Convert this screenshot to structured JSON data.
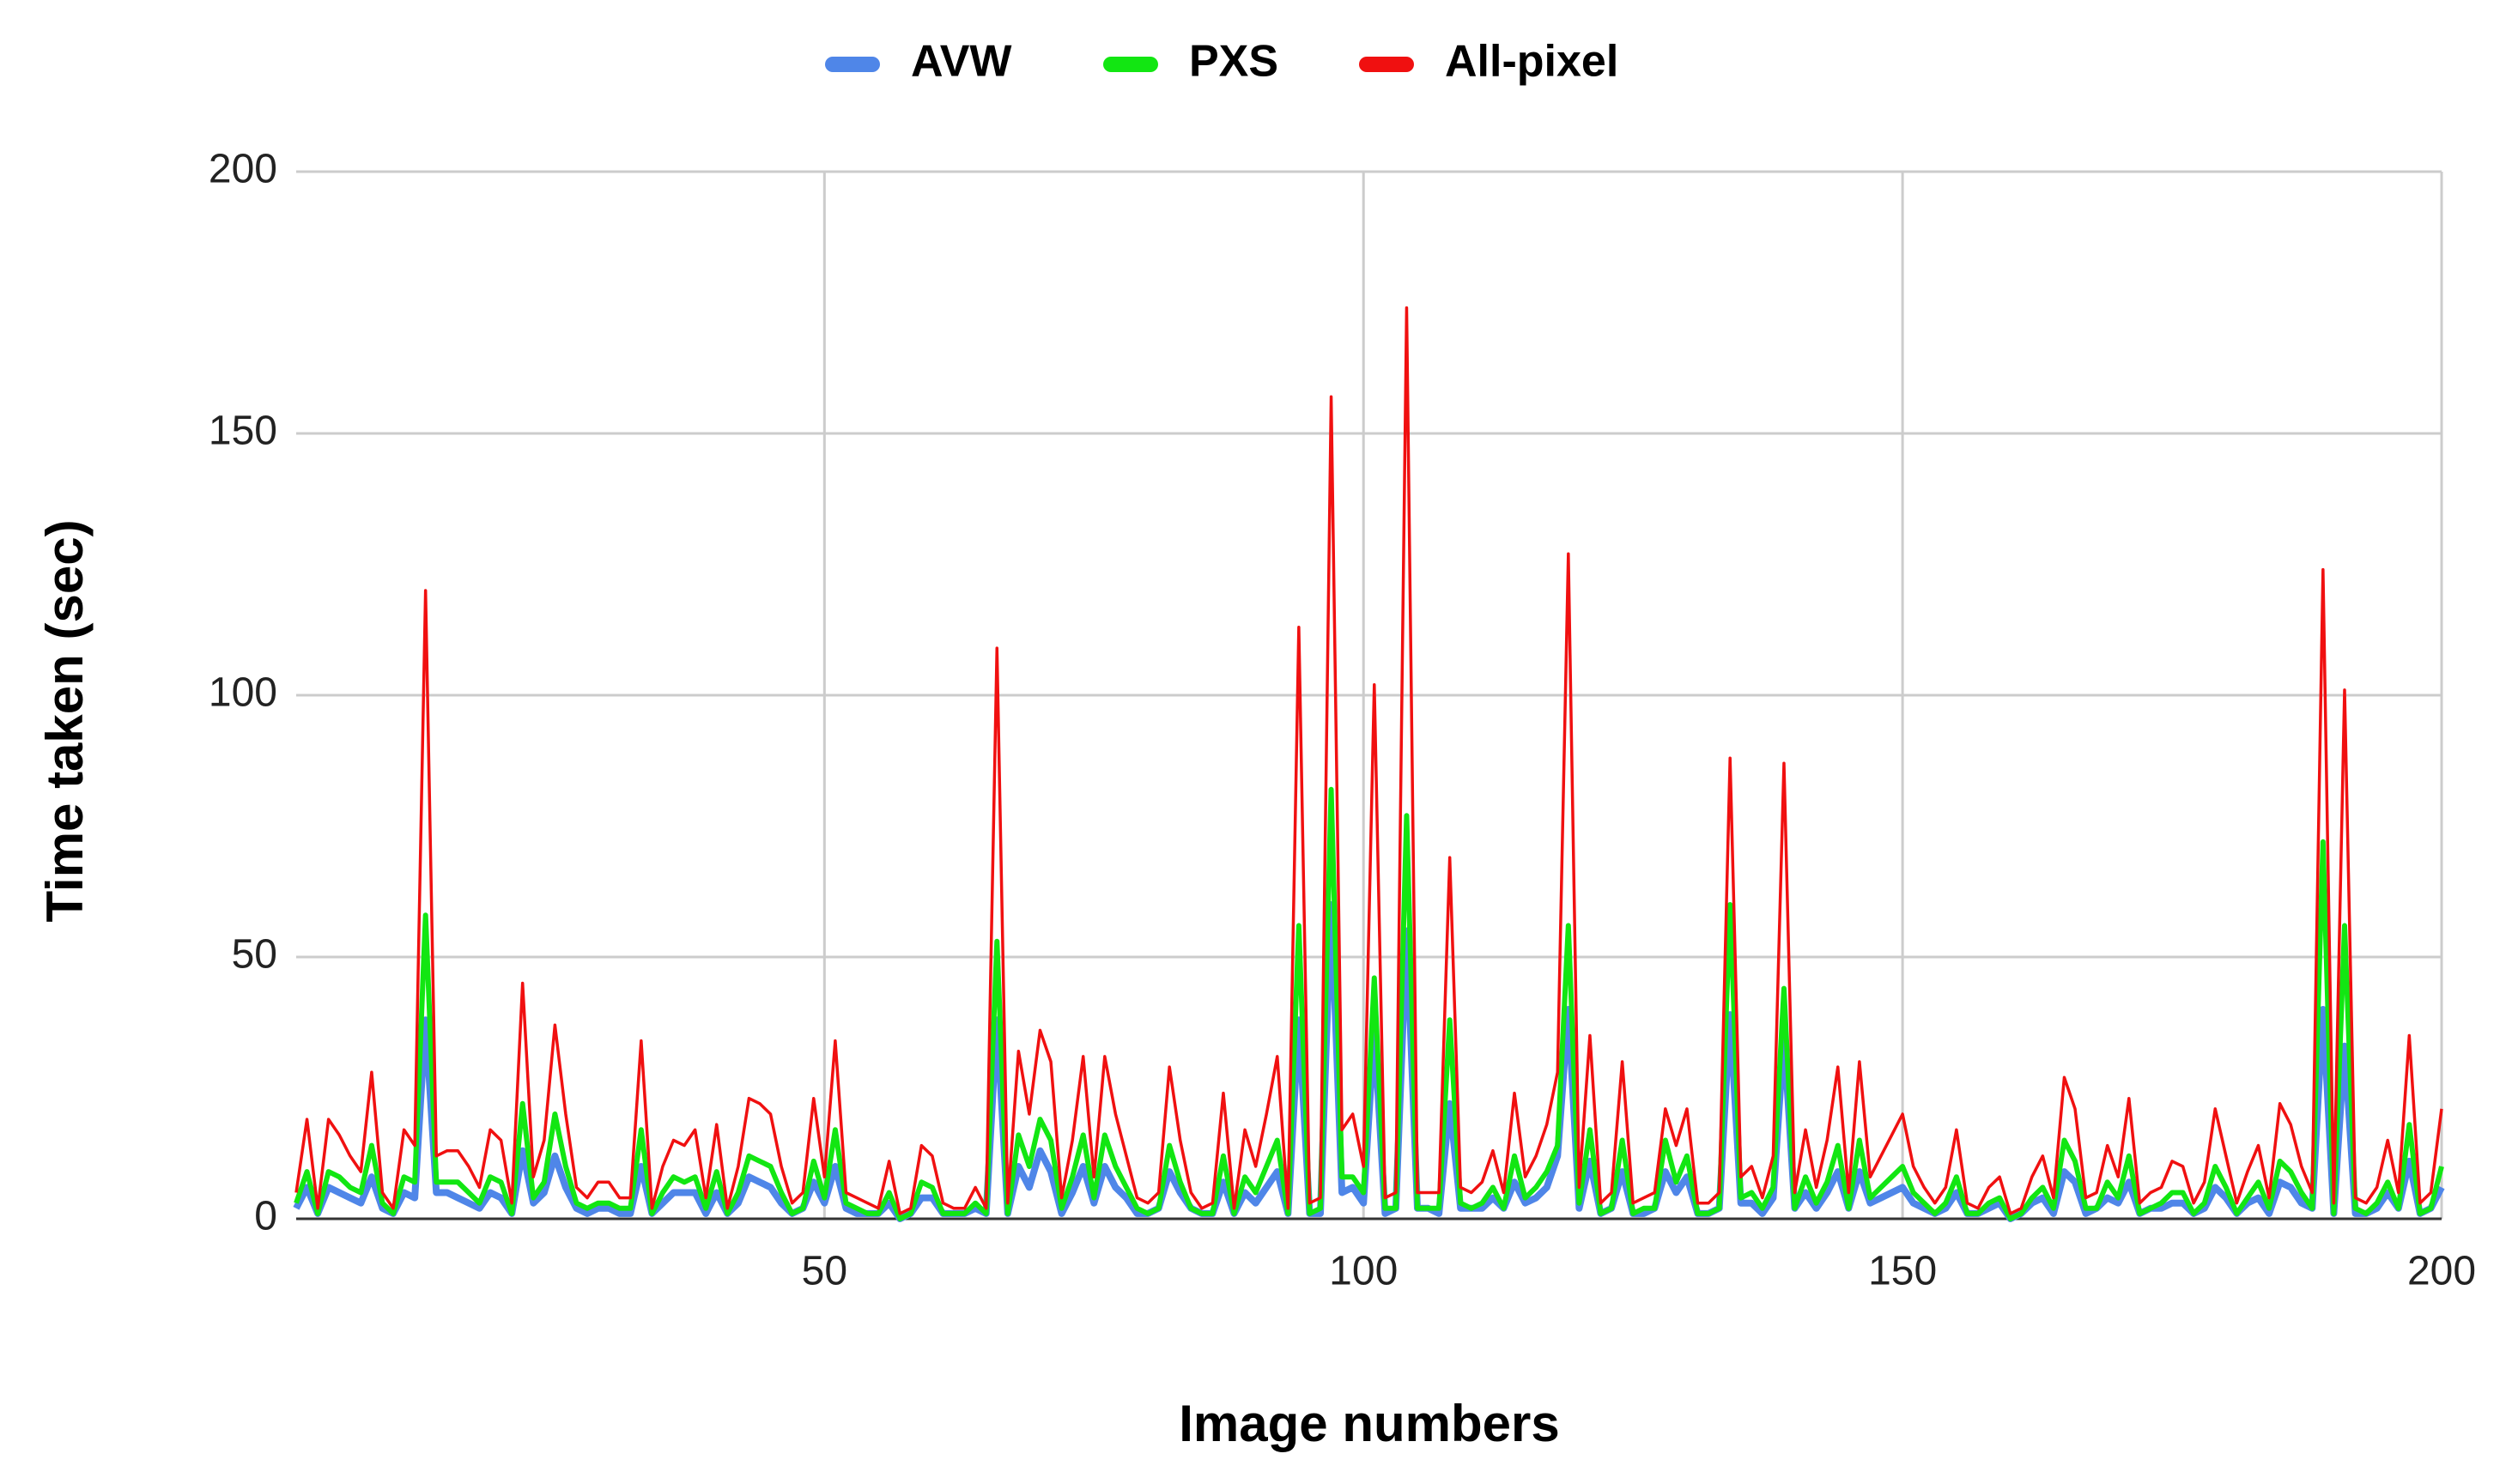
{
  "chart_data": {
    "type": "line",
    "x_label": "Image numbers",
    "y_label": "Time taken (sec)",
    "legend": "top",
    "grid": true,
    "xlim": [
      1,
      200
    ],
    "xticks": [
      50,
      100,
      150,
      200
    ],
    "ylim": [
      0,
      200
    ],
    "yticks": [
      0,
      50,
      100,
      150,
      200
    ],
    "x": [
      1,
      2,
      3,
      4,
      5,
      6,
      7,
      8,
      9,
      10,
      11,
      12,
      13,
      14,
      15,
      16,
      17,
      18,
      19,
      20,
      21,
      22,
      23,
      24,
      25,
      26,
      27,
      28,
      29,
      30,
      31,
      32,
      33,
      34,
      35,
      36,
      37,
      38,
      39,
      40,
      41,
      42,
      43,
      44,
      45,
      46,
      47,
      48,
      49,
      50,
      51,
      52,
      53,
      54,
      55,
      56,
      57,
      58,
      59,
      60,
      61,
      62,
      63,
      64,
      65,
      66,
      67,
      68,
      69,
      70,
      71,
      72,
      73,
      74,
      75,
      76,
      77,
      78,
      79,
      80,
      81,
      82,
      83,
      84,
      85,
      86,
      87,
      88,
      89,
      90,
      91,
      92,
      93,
      94,
      95,
      96,
      97,
      98,
      99,
      100,
      101,
      102,
      103,
      104,
      105,
      106,
      107,
      108,
      109,
      110,
      111,
      112,
      113,
      114,
      115,
      116,
      117,
      118,
      119,
      120,
      121,
      122,
      123,
      124,
      125,
      126,
      127,
      128,
      129,
      130,
      131,
      132,
      133,
      134,
      135,
      136,
      137,
      138,
      139,
      140,
      141,
      142,
      143,
      144,
      145,
      146,
      147,
      148,
      149,
      150,
      151,
      152,
      153,
      154,
      155,
      156,
      157,
      158,
      159,
      160,
      161,
      162,
      163,
      164,
      165,
      166,
      167,
      168,
      169,
      170,
      171,
      172,
      173,
      174,
      175,
      176,
      177,
      178,
      179,
      180,
      181,
      182,
      183,
      184,
      185,
      186,
      187,
      188,
      189,
      190,
      191,
      192,
      193,
      194,
      195,
      196,
      197,
      198,
      199,
      200
    ],
    "series": [
      {
        "name": "AVW",
        "color": "#4f86e8",
        "values": [
          2,
          6,
          1,
          6,
          5,
          4,
          3,
          8,
          2,
          1,
          5,
          4,
          38,
          5,
          5,
          4,
          3,
          2,
          5,
          4,
          1,
          13,
          3,
          5,
          12,
          6,
          2,
          1,
          2,
          2,
          1,
          1,
          10,
          1,
          3,
          5,
          5,
          5,
          1,
          5,
          1,
          3,
          8,
          7,
          6,
          3,
          1,
          2,
          7,
          3,
          10,
          2,
          1,
          1,
          1,
          3,
          0,
          1,
          4,
          4,
          1,
          1,
          1,
          2,
          1,
          38,
          1,
          10,
          6,
          13,
          9,
          1,
          5,
          10,
          3,
          10,
          6,
          4,
          1,
          1,
          2,
          9,
          5,
          2,
          1,
          1,
          7,
          1,
          5,
          3,
          6,
          9,
          1,
          38,
          1,
          1,
          60,
          5,
          6,
          3,
          36,
          1,
          2,
          55,
          2,
          2,
          1,
          22,
          2,
          2,
          2,
          4,
          2,
          7,
          3,
          4,
          6,
          12,
          40,
          2,
          11,
          1,
          2,
          9,
          1,
          1,
          2,
          9,
          5,
          8,
          1,
          1,
          2,
          39,
          3,
          3,
          1,
          4,
          35,
          2,
          5,
          2,
          5,
          9,
          2,
          9,
          3,
          4,
          5,
          6,
          3,
          2,
          1,
          2,
          5,
          1,
          1,
          2,
          3,
          0,
          1,
          3,
          4,
          1,
          9,
          7,
          1,
          2,
          4,
          3,
          7,
          1,
          2,
          2,
          3,
          3,
          1,
          2,
          6,
          4,
          1,
          3,
          4,
          1,
          7,
          6,
          3,
          2,
          40,
          1,
          33,
          1,
          1,
          2,
          5,
          2,
          11,
          1,
          2,
          6
        ]
      },
      {
        "name": "PXS",
        "color": "#12e612",
        "values": [
          3,
          9,
          1,
          9,
          8,
          6,
          5,
          14,
          3,
          1,
          8,
          7,
          58,
          7,
          7,
          7,
          5,
          3,
          8,
          7,
          1,
          22,
          4,
          7,
          20,
          10,
          3,
          2,
          3,
          3,
          2,
          2,
          17,
          1,
          5,
          8,
          7,
          8,
          2,
          9,
          1,
          5,
          12,
          11,
          10,
          5,
          1,
          2,
          11,
          4,
          17,
          3,
          2,
          1,
          1,
          5,
          0,
          1,
          7,
          6,
          1,
          1,
          1,
          3,
          1,
          53,
          1,
          16,
          10,
          19,
          15,
          2,
          8,
          16,
          4,
          16,
          10,
          6,
          2,
          1,
          2,
          14,
          7,
          2,
          1,
          1,
          12,
          1,
          8,
          5,
          10,
          15,
          1,
          56,
          1,
          2,
          82,
          8,
          8,
          5,
          46,
          2,
          2,
          77,
          2,
          2,
          2,
          38,
          3,
          2,
          3,
          6,
          2,
          12,
          4,
          6,
          9,
          14,
          56,
          3,
          17,
          1,
          2,
          15,
          1,
          2,
          2,
          15,
          7,
          12,
          1,
          1,
          2,
          60,
          4,
          5,
          2,
          6,
          44,
          2,
          8,
          3,
          7,
          14,
          2,
          15,
          4,
          6,
          8,
          10,
          5,
          3,
          1,
          3,
          8,
          1,
          1,
          3,
          4,
          0,
          1,
          4,
          6,
          2,
          15,
          11,
          2,
          2,
          7,
          4,
          12,
          1,
          2,
          3,
          5,
          5,
          1,
          3,
          10,
          6,
          1,
          4,
          7,
          2,
          11,
          9,
          5,
          2,
          72,
          1,
          56,
          2,
          1,
          3,
          7,
          2,
          18,
          1,
          2,
          10
        ]
      },
      {
        "name": "All-pixel",
        "color": "#f01010",
        "values": [
          5,
          19,
          2,
          19,
          16,
          12,
          9,
          28,
          5,
          2,
          17,
          14,
          120,
          12,
          13,
          13,
          10,
          6,
          17,
          15,
          3,
          45,
          8,
          15,
          37,
          20,
          6,
          4,
          7,
          7,
          4,
          4,
          34,
          2,
          10,
          15,
          14,
          17,
          4,
          18,
          2,
          10,
          23,
          22,
          20,
          10,
          3,
          5,
          23,
          8,
          34,
          5,
          4,
          3,
          2,
          11,
          1,
          2,
          14,
          12,
          3,
          2,
          2,
          6,
          2,
          109,
          3,
          32,
          20,
          36,
          30,
          4,
          15,
          31,
          8,
          31,
          20,
          12,
          4,
          3,
          5,
          29,
          15,
          5,
          2,
          3,
          24,
          2,
          17,
          10,
          20,
          31,
          2,
          113,
          3,
          4,
          157,
          17,
          20,
          10,
          102,
          4,
          5,
          174,
          5,
          5,
          5,
          69,
          6,
          5,
          7,
          13,
          5,
          24,
          8,
          12,
          18,
          28,
          127,
          6,
          35,
          3,
          5,
          30,
          3,
          4,
          5,
          21,
          14,
          21,
          3,
          3,
          5,
          88,
          8,
          10,
          4,
          12,
          87,
          5,
          17,
          6,
          15,
          29,
          5,
          30,
          8,
          12,
          16,
          20,
          10,
          6,
          3,
          6,
          17,
          3,
          2,
          6,
          8,
          1,
          2,
          8,
          12,
          4,
          27,
          21,
          4,
          5,
          14,
          8,
          23,
          3,
          5,
          6,
          11,
          10,
          3,
          7,
          21,
          12,
          3,
          9,
          14,
          4,
          22,
          18,
          10,
          5,
          124,
          3,
          101,
          4,
          3,
          6,
          15,
          5,
          35,
          3,
          5,
          21
        ]
      }
    ]
  }
}
